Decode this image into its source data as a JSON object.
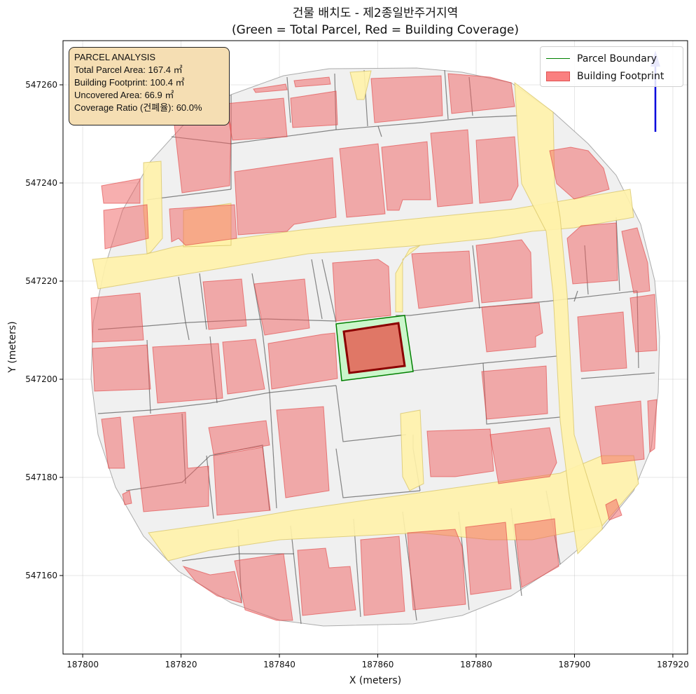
{
  "map": {
    "title_line1": "건물 배치도 - 제2종일반주거지역",
    "title_line2": "(Green = Total Parcel, Red = Building Coverage)",
    "xlabel": "X (meters)",
    "ylabel": "Y (meters)",
    "x_ticks": [
      187800,
      187820,
      187840,
      187860,
      187880,
      187900,
      187920
    ],
    "y_ticks": [
      547160,
      547180,
      547200,
      547220,
      547240,
      547260
    ],
    "xlim": [
      187796,
      187923
    ],
    "ylim": [
      547144,
      547269
    ],
    "colors": {
      "parcel": "#008000",
      "parcel_fill": "#c8f5c8",
      "building": "#fa8080",
      "target_building": "#e07060",
      "target_outline": "#8b0000",
      "road": "#fff2aa",
      "ground": "#f0f0f0",
      "north_arrow": "#0000dd"
    }
  },
  "info_box": {
    "heading": "PARCEL ANALYSIS",
    "total_area": "Total Parcel Area: 167.4 ㎡",
    "footprint": "Building Footprint: 100.4 ㎡",
    "uncovered": "Uncovered Area: 66.9 ㎡",
    "coverage": "Coverage Ratio (건폐율): 60.0%"
  },
  "legend": {
    "parcel_label": "Parcel Boundary",
    "building_label": "Building Footprint"
  }
}
